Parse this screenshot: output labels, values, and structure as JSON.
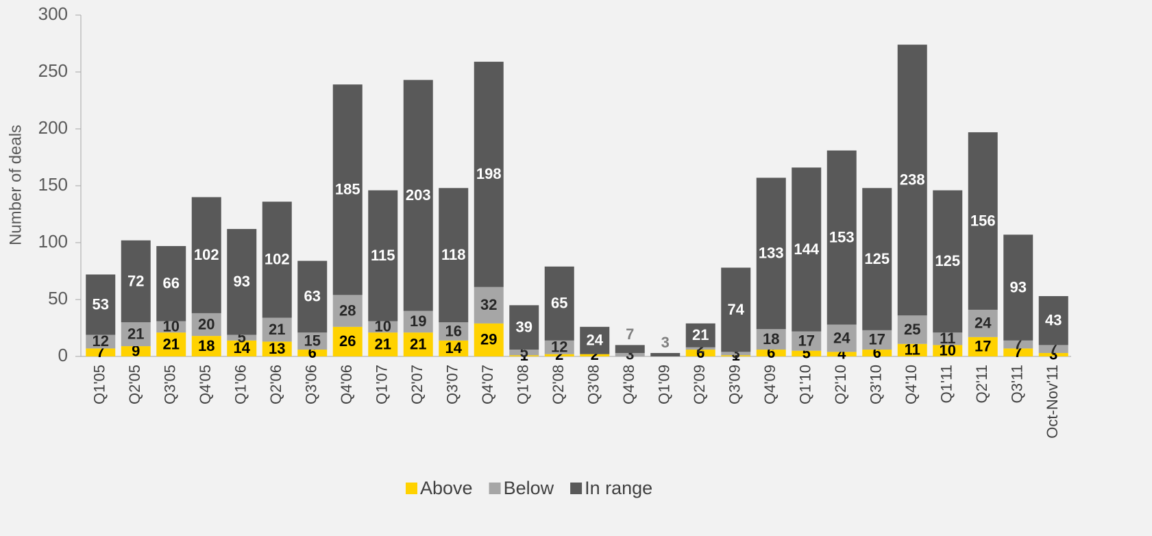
{
  "chart_data": {
    "type": "stacked-bar",
    "y_label": "Number of deals",
    "categories": [
      "Q1'05",
      "Q2'05",
      "Q3'05",
      "Q4'05",
      "Q1'06",
      "Q2'06",
      "Q3'06",
      "Q4'06",
      "Q1'07",
      "Q2'07",
      "Q3'07",
      "Q4'07",
      "Q1'08",
      "Q2'08",
      "Q3'08",
      "Q4'08",
      "Q1'09",
      "Q2'09",
      "Q3'09",
      "Q4'09",
      "Q1'10",
      "Q2'10",
      "Q3'10",
      "Q4'10",
      "Q1'11",
      "Q2'11",
      "Q3'11",
      "Oct-Nov'11"
    ],
    "series": [
      {
        "name": "Above",
        "color": "#ffd200",
        "values": [
          7,
          9,
          21,
          18,
          14,
          13,
          6,
          26,
          21,
          21,
          14,
          29,
          1,
          2,
          2,
          null,
          null,
          6,
          1,
          6,
          5,
          4,
          6,
          11,
          10,
          17,
          7,
          3
        ]
      },
      {
        "name": "Below",
        "color": "#a6a6a6",
        "values": [
          12,
          21,
          10,
          20,
          5,
          21,
          15,
          28,
          10,
          19,
          16,
          32,
          5,
          12,
          null,
          3,
          null,
          2,
          3,
          18,
          17,
          24,
          17,
          25,
          11,
          24,
          7,
          7
        ]
      },
      {
        "name": "In range",
        "color": "#595959",
        "values": [
          53,
          72,
          66,
          102,
          93,
          102,
          63,
          185,
          115,
          203,
          118,
          198,
          39,
          65,
          24,
          7,
          3,
          21,
          74,
          133,
          144,
          153,
          125,
          238,
          125,
          156,
          93,
          43
        ]
      }
    ],
    "ylim": [
      0,
      300
    ],
    "yticks": [
      0,
      50,
      100,
      150,
      200,
      250,
      300
    ],
    "legend": "bottom"
  }
}
